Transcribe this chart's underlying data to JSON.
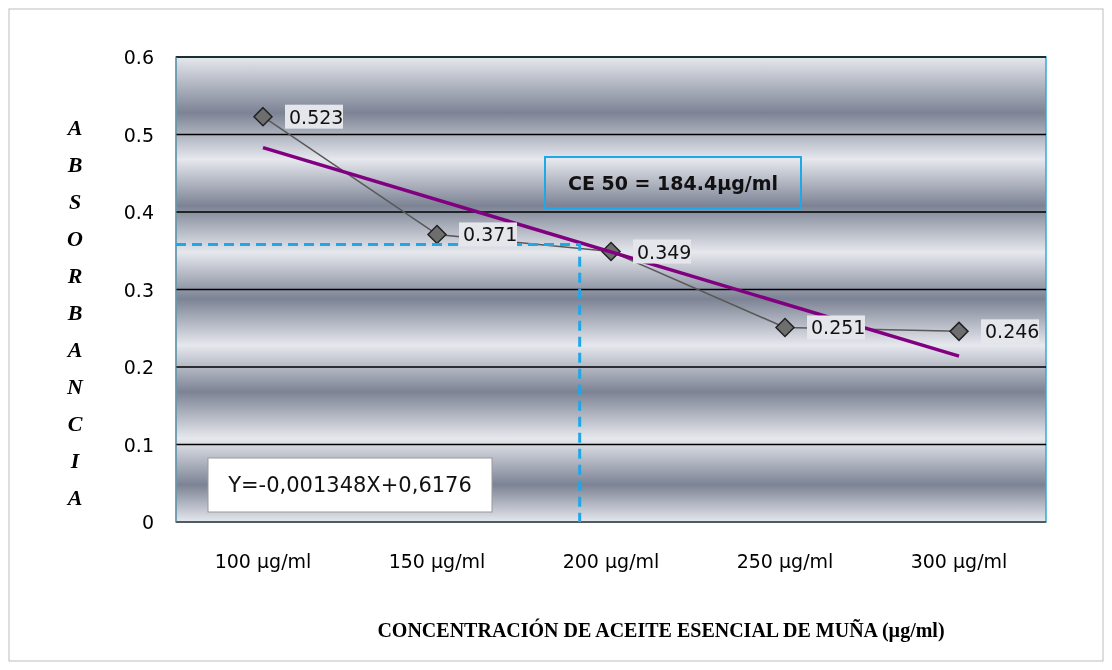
{
  "chart_data": {
    "type": "line",
    "xlabel": "CONCENTRACIÓN DE ACEITE ESENCIAL DE MUÑA (µg/ml)",
    "ylabel": "ABSORBANCIA",
    "xlim": [
      75,
      325
    ],
    "xticks": [
      {
        "value": 100,
        "label": "100 µg/ml"
      },
      {
        "value": 150,
        "label": "150 µg/ml"
      },
      {
        "value": 200,
        "label": "200 µg/ml"
      },
      {
        "value": 250,
        "label": "250 µg/ml"
      },
      {
        "value": 300,
        "label": "300 µg/ml"
      }
    ],
    "ylim": [
      0,
      0.6
    ],
    "yticks": [
      0,
      0.1,
      0.2,
      0.3,
      0.4,
      0.5,
      0.6
    ],
    "grid": "y",
    "series": [
      {
        "color": "#595959",
        "x": [
          100,
          150,
          200,
          250,
          300
        ],
        "values": [
          0.523,
          0.371,
          0.349,
          0.251,
          0.246
        ],
        "marker": "diamond",
        "data_labels": true
      },
      {
        "color": "#800080",
        "x": [
          100,
          300
        ],
        "values": [
          0.483,
          0.214
        ],
        "marker": "none"
      },
      {
        "color": "#1fa8e8",
        "x": [
          75,
          191,
          191
        ],
        "values": [
          0.358,
          0.358,
          0
        ],
        "marker": "none",
        "line_style": "dashed"
      }
    ],
    "annotations": [
      "CE 50 = 184.4µg/ml",
      "Y=-0,001348X+0,6176"
    ]
  }
}
